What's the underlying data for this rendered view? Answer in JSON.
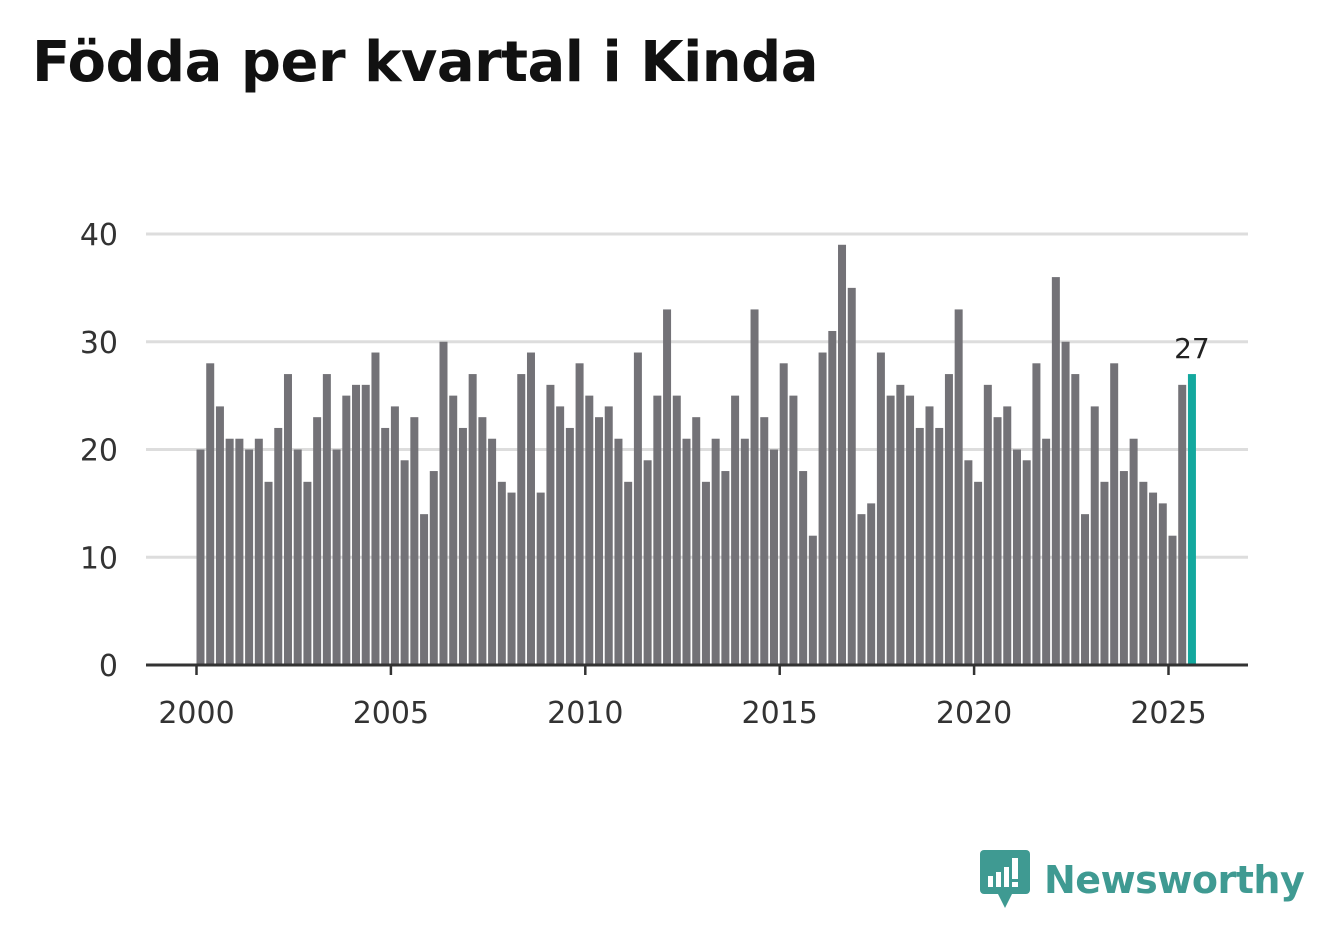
{
  "title": "Födda per kvartal i Kinda",
  "brand": {
    "name": "Newsworthy",
    "icon": "newsworthy-logo-icon",
    "color": "#3f9a92"
  },
  "colors": {
    "bar": "#737277",
    "highlight": "#13a89e",
    "grid": "#dddddd",
    "axis": "#333333"
  },
  "chart_data": {
    "type": "bar",
    "title": "Födda per kvartal i Kinda",
    "xlabel": "",
    "ylabel": "",
    "ylim": [
      0,
      40
    ],
    "yticks": [
      "0",
      "10",
      "20",
      "30",
      "40"
    ],
    "xticks": [
      "2000",
      "2005",
      "2010",
      "2015",
      "2020",
      "2025"
    ],
    "grid": true,
    "start": "2000 Q1",
    "frequency": "quarterly",
    "values": [
      20,
      28,
      24,
      21,
      21,
      20,
      21,
      17,
      22,
      27,
      20,
      17,
      23,
      27,
      20,
      25,
      26,
      26,
      29,
      22,
      24,
      19,
      23,
      14,
      18,
      30,
      25,
      22,
      27,
      23,
      21,
      17,
      16,
      27,
      29,
      16,
      26,
      24,
      22,
      28,
      25,
      23,
      24,
      21,
      17,
      29,
      19,
      25,
      33,
      25,
      21,
      23,
      17,
      21,
      18,
      25,
      21,
      33,
      23,
      20,
      28,
      25,
      18,
      12,
      29,
      31,
      39,
      35,
      14,
      15,
      29,
      25,
      26,
      25,
      22,
      24,
      22,
      27,
      33,
      19,
      17,
      26,
      23,
      24,
      20,
      19,
      28,
      21,
      36,
      30,
      27,
      14,
      24,
      17,
      28,
      18,
      21,
      17,
      16,
      15,
      12,
      26,
      27
    ],
    "highlight": {
      "label": "27",
      "index": 102
    }
  }
}
